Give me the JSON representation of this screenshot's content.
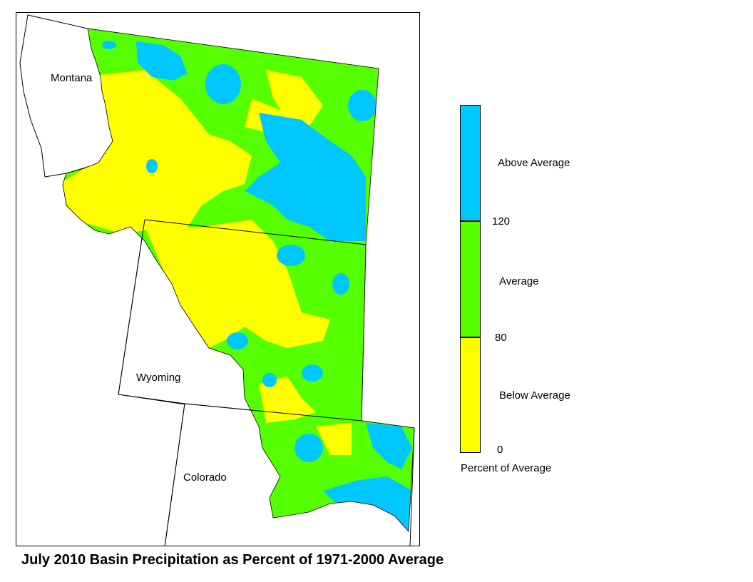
{
  "title": "July 2010 Basin Precipitation as Percent of 1971-2000 Average",
  "map": {
    "states": [
      {
        "id": "montana",
        "label": "Montana"
      },
      {
        "id": "wyoming",
        "label": "Wyoming"
      },
      {
        "id": "colorado",
        "label": "Colorado"
      }
    ]
  },
  "legend": {
    "title": "Percent of Average",
    "classes": [
      {
        "label": "Above Average",
        "color": "#00c8ff"
      },
      {
        "label": "Average",
        "color": "#55ff00"
      },
      {
        "label": "Below Average",
        "color": "#ffff00"
      }
    ],
    "breaks": [
      "120",
      "80",
      "0"
    ]
  },
  "colors": {
    "above": "#00c8ff",
    "average": "#55ff00",
    "below": "#ffff00",
    "border": "#000000"
  }
}
